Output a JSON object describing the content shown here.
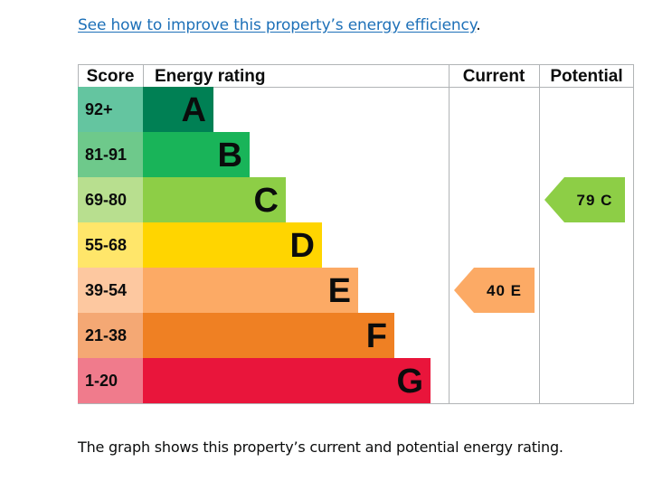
{
  "link": {
    "text": "See how to improve this property’s energy efficiency",
    "suffix": "."
  },
  "caption": "The graph shows this property’s current and potential energy rating.",
  "chart_data": {
    "type": "bar",
    "headers": {
      "score": "Score",
      "rating": "Energy rating",
      "current": "Current",
      "potential": "Potential"
    },
    "bands": [
      {
        "letter": "A",
        "score": "92+",
        "color": "#008054",
        "score_color": "#64c5a0"
      },
      {
        "letter": "B",
        "score": "81-91",
        "color": "#19b459",
        "score_color": "#6ec98b"
      },
      {
        "letter": "C",
        "score": "69-80",
        "color": "#8dce46",
        "score_color": "#b8df8f"
      },
      {
        "letter": "D",
        "score": "55-68",
        "color": "#ffd500",
        "score_color": "#ffe66a"
      },
      {
        "letter": "E",
        "score": "39-54",
        "color": "#fcaa65",
        "score_color": "#fdc8a0"
      },
      {
        "letter": "F",
        "score": "21-38",
        "color": "#ef8023",
        "score_color": "#f4a874"
      },
      {
        "letter": "G",
        "score": "1-20",
        "color": "#e9153b",
        "score_color": "#f07b8c"
      }
    ],
    "current": {
      "value": 40,
      "band": "E",
      "label": "40  E",
      "color": "#fcaa65"
    },
    "potential": {
      "value": 79,
      "band": "C",
      "label": "79  C",
      "color": "#8dce46"
    }
  }
}
